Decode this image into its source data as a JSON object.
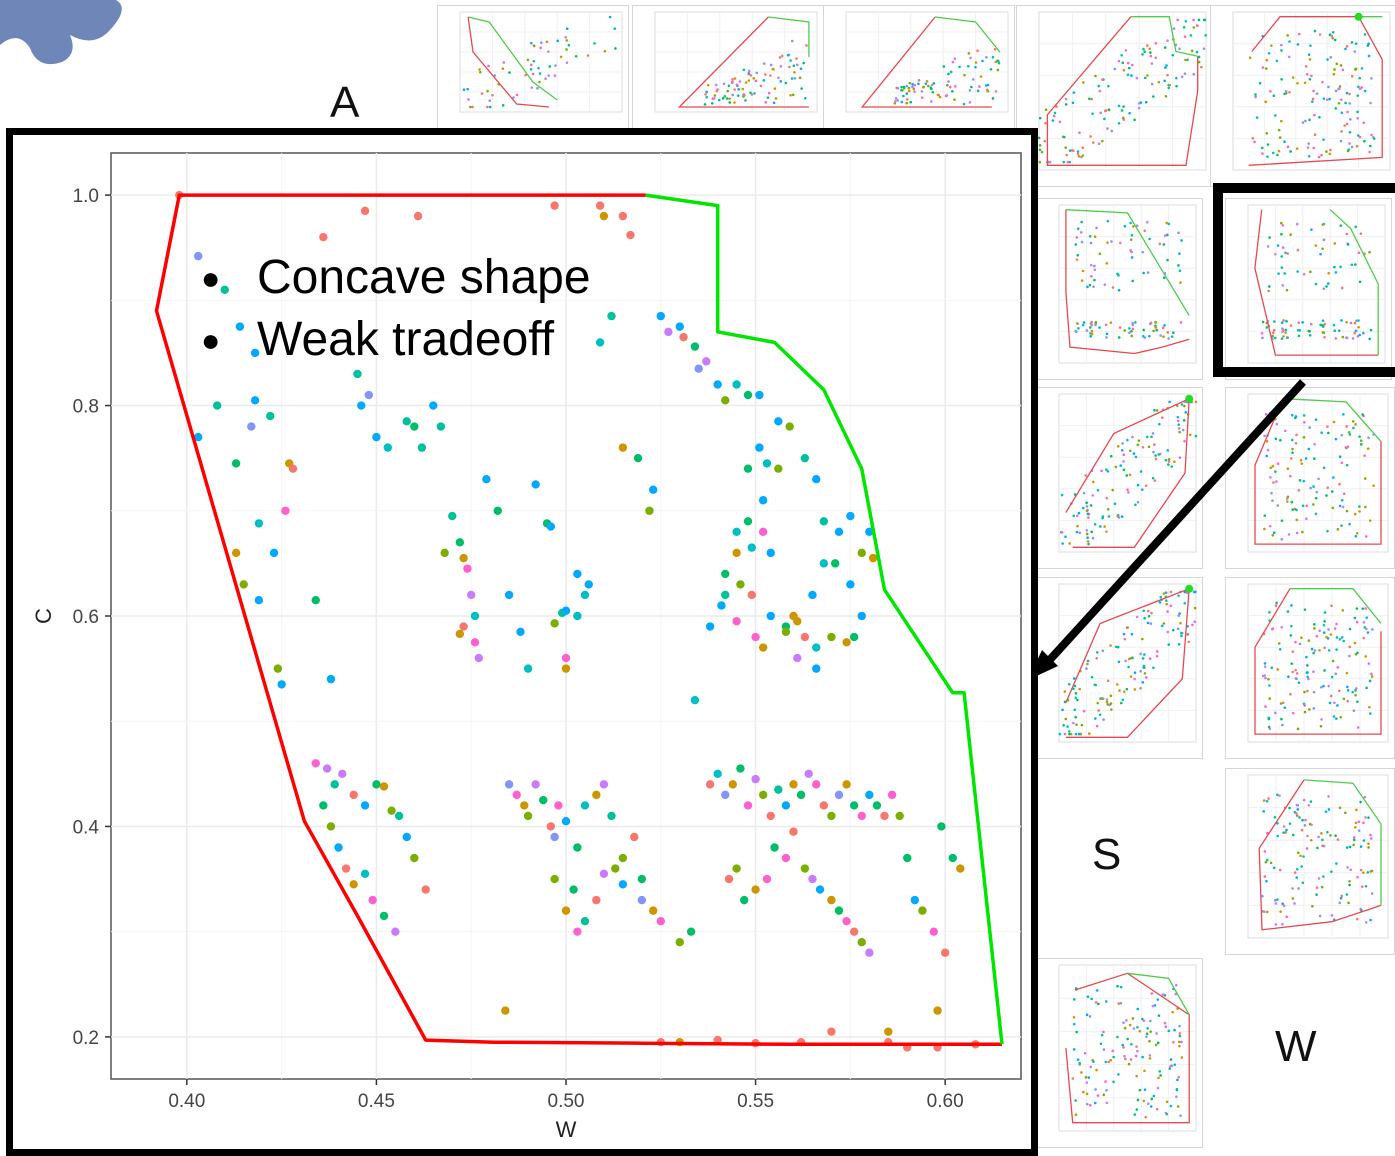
{
  "labels": {
    "panel_a": "A",
    "panel_s": "S",
    "panel_w": "W"
  },
  "annotations": [
    "Concave shape",
    "Weak tradeoff"
  ],
  "colors": {
    "hull_dominated": "#ff0000",
    "hull_pareto": "#00e600",
    "point_palette": [
      "#f8766d",
      "#cd9600",
      "#7cae00",
      "#00be67",
      "#00c19a",
      "#00bfc4",
      "#00a9ff",
      "#8494ff",
      "#c77cff",
      "#ff61cc"
    ],
    "thumb_dominated": "#e8484f",
    "thumb_pareto": "#4ccd4c"
  },
  "chart_data": {
    "type": "scatter",
    "xlabel": "W",
    "ylabel": "C",
    "xlim": [
      0.38,
      0.62
    ],
    "ylim": [
      0.16,
      1.04
    ],
    "xticks": [
      "0.40",
      "0.45",
      "0.50",
      "0.55",
      "0.60"
    ],
    "yticks": [
      "0.2",
      "0.4",
      "0.6",
      "0.8",
      "1.0"
    ],
    "grid": true,
    "hull_dominated": [
      [
        0.521,
        1.0
      ],
      [
        0.398,
        1.0
      ],
      [
        0.392,
        0.89
      ],
      [
        0.431,
        0.405
      ],
      [
        0.445,
        0.315
      ],
      [
        0.463,
        0.197
      ],
      [
        0.481,
        0.195
      ],
      [
        0.52,
        0.194
      ],
      [
        0.56,
        0.193
      ],
      [
        0.615,
        0.193
      ]
    ],
    "hull_pareto": [
      [
        0.521,
        1.0
      ],
      [
        0.54,
        0.99
      ],
      [
        0.54,
        0.87
      ],
      [
        0.555,
        0.86
      ],
      [
        0.568,
        0.815
      ],
      [
        0.578,
        0.74
      ],
      [
        0.584,
        0.625
      ],
      [
        0.602,
        0.527
      ],
      [
        0.605,
        0.527
      ],
      [
        0.615,
        0.193
      ]
    ],
    "points": [
      [
        0.398,
        1.0,
        0
      ],
      [
        0.436,
        0.96,
        0
      ],
      [
        0.447,
        0.985,
        0
      ],
      [
        0.461,
        0.98,
        0
      ],
      [
        0.497,
        0.99,
        0
      ],
      [
        0.509,
        0.99,
        0
      ],
      [
        0.51,
        0.98,
        1
      ],
      [
        0.515,
        0.98,
        0
      ],
      [
        0.517,
        0.962,
        0
      ],
      [
        0.403,
        0.942,
        7
      ],
      [
        0.41,
        0.91,
        4
      ],
      [
        0.418,
        0.85,
        6
      ],
      [
        0.414,
        0.875,
        6
      ],
      [
        0.408,
        0.8,
        4
      ],
      [
        0.403,
        0.77,
        6
      ],
      [
        0.417,
        0.78,
        7
      ],
      [
        0.422,
        0.79,
        4
      ],
      [
        0.418,
        0.805,
        6
      ],
      [
        0.413,
        0.745,
        3
      ],
      [
        0.419,
        0.688,
        5
      ],
      [
        0.423,
        0.66,
        6
      ],
      [
        0.413,
        0.66,
        1
      ],
      [
        0.415,
        0.63,
        2
      ],
      [
        0.419,
        0.615,
        6
      ],
      [
        0.434,
        0.615,
        3
      ],
      [
        0.424,
        0.55,
        2
      ],
      [
        0.425,
        0.535,
        6
      ],
      [
        0.427,
        0.745,
        1
      ],
      [
        0.428,
        0.74,
        0
      ],
      [
        0.426,
        0.7,
        9
      ],
      [
        0.438,
        0.54,
        6
      ],
      [
        0.445,
        0.83,
        4
      ],
      [
        0.446,
        0.8,
        6
      ],
      [
        0.448,
        0.81,
        7
      ],
      [
        0.45,
        0.77,
        6
      ],
      [
        0.453,
        0.76,
        5
      ],
      [
        0.458,
        0.785,
        4
      ],
      [
        0.46,
        0.78,
        3
      ],
      [
        0.462,
        0.76,
        4
      ],
      [
        0.465,
        0.8,
        6
      ],
      [
        0.467,
        0.78,
        4
      ],
      [
        0.468,
        0.66,
        2
      ],
      [
        0.47,
        0.695,
        4
      ],
      [
        0.472,
        0.67,
        3
      ],
      [
        0.473,
        0.655,
        1
      ],
      [
        0.474,
        0.645,
        9
      ],
      [
        0.475,
        0.62,
        8
      ],
      [
        0.476,
        0.6,
        5
      ],
      [
        0.473,
        0.59,
        0
      ],
      [
        0.472,
        0.583,
        1
      ],
      [
        0.476,
        0.575,
        9
      ],
      [
        0.477,
        0.56,
        8
      ],
      [
        0.479,
        0.73,
        6
      ],
      [
        0.482,
        0.7,
        3
      ],
      [
        0.485,
        0.62,
        6
      ],
      [
        0.488,
        0.585,
        6
      ],
      [
        0.49,
        0.55,
        5
      ],
      [
        0.492,
        0.725,
        6
      ],
      [
        0.495,
        0.688,
        3
      ],
      [
        0.496,
        0.685,
        6
      ],
      [
        0.5,
        0.55,
        1
      ],
      [
        0.5,
        0.56,
        9
      ],
      [
        0.503,
        0.6,
        5
      ],
      [
        0.497,
        0.593,
        2
      ],
      [
        0.499,
        0.603,
        4
      ],
      [
        0.5,
        0.605,
        6
      ],
      [
        0.505,
        0.62,
        5
      ],
      [
        0.503,
        0.64,
        6
      ],
      [
        0.506,
        0.63,
        6
      ],
      [
        0.509,
        0.86,
        5
      ],
      [
        0.512,
        0.885,
        4
      ],
      [
        0.515,
        0.76,
        1
      ],
      [
        0.519,
        0.75,
        3
      ],
      [
        0.522,
        0.7,
        2
      ],
      [
        0.523,
        0.72,
        6
      ],
      [
        0.525,
        0.885,
        6
      ],
      [
        0.527,
        0.87,
        8
      ],
      [
        0.53,
        0.875,
        6
      ],
      [
        0.531,
        0.865,
        0
      ],
      [
        0.534,
        0.856,
        3
      ],
      [
        0.535,
        0.835,
        7
      ],
      [
        0.537,
        0.842,
        8
      ],
      [
        0.54,
        0.82,
        6
      ],
      [
        0.542,
        0.805,
        2
      ],
      [
        0.545,
        0.82,
        5
      ],
      [
        0.548,
        0.81,
        3
      ],
      [
        0.551,
        0.81,
        6
      ],
      [
        0.556,
        0.785,
        6
      ],
      [
        0.559,
        0.78,
        2
      ],
      [
        0.563,
        0.75,
        4
      ],
      [
        0.566,
        0.73,
        6
      ],
      [
        0.568,
        0.69,
        4
      ],
      [
        0.571,
        0.65,
        3
      ],
      [
        0.575,
        0.63,
        6
      ],
      [
        0.578,
        0.6,
        6
      ],
      [
        0.548,
        0.74,
        3
      ],
      [
        0.551,
        0.76,
        6
      ],
      [
        0.553,
        0.745,
        5
      ],
      [
        0.556,
        0.74,
        2
      ],
      [
        0.552,
        0.71,
        6
      ],
      [
        0.548,
        0.69,
        3
      ],
      [
        0.545,
        0.68,
        5
      ],
      [
        0.552,
        0.68,
        9
      ],
      [
        0.545,
        0.66,
        1
      ],
      [
        0.549,
        0.665,
        5
      ],
      [
        0.554,
        0.66,
        6
      ],
      [
        0.542,
        0.64,
        3
      ],
      [
        0.546,
        0.63,
        2
      ],
      [
        0.549,
        0.62,
        0
      ],
      [
        0.554,
        0.6,
        6
      ],
      [
        0.558,
        0.59,
        3
      ],
      [
        0.561,
        0.595,
        1
      ],
      [
        0.563,
        0.58,
        0
      ],
      [
        0.566,
        0.57,
        5
      ],
      [
        0.561,
        0.56,
        8
      ],
      [
        0.566,
        0.55,
        6
      ],
      [
        0.574,
        0.575,
        1
      ],
      [
        0.57,
        0.58,
        2
      ],
      [
        0.576,
        0.58,
        3
      ],
      [
        0.534,
        0.52,
        5
      ],
      [
        0.538,
        0.59,
        6
      ],
      [
        0.541,
        0.61,
        6
      ],
      [
        0.542,
        0.62,
        4
      ],
      [
        0.545,
        0.595,
        9
      ],
      [
        0.55,
        0.58,
        9
      ],
      [
        0.552,
        0.57,
        1
      ],
      [
        0.558,
        0.585,
        2
      ],
      [
        0.56,
        0.6,
        1
      ],
      [
        0.565,
        0.62,
        6
      ],
      [
        0.568,
        0.65,
        5
      ],
      [
        0.572,
        0.68,
        6
      ],
      [
        0.575,
        0.695,
        6
      ],
      [
        0.578,
        0.66,
        2
      ],
      [
        0.58,
        0.68,
        6
      ],
      [
        0.581,
        0.655,
        1
      ],
      [
        0.434,
        0.46,
        9
      ],
      [
        0.437,
        0.455,
        8
      ],
      [
        0.439,
        0.44,
        4
      ],
      [
        0.441,
        0.45,
        8
      ],
      [
        0.444,
        0.43,
        0
      ],
      [
        0.447,
        0.42,
        6
      ],
      [
        0.45,
        0.44,
        3
      ],
      [
        0.452,
        0.438,
        1
      ],
      [
        0.454,
        0.415,
        2
      ],
      [
        0.436,
        0.42,
        3
      ],
      [
        0.438,
        0.4,
        2
      ],
      [
        0.44,
        0.38,
        6
      ],
      [
        0.442,
        0.36,
        0
      ],
      [
        0.444,
        0.345,
        1
      ],
      [
        0.447,
        0.355,
        5
      ],
      [
        0.449,
        0.33,
        9
      ],
      [
        0.452,
        0.315,
        3
      ],
      [
        0.455,
        0.3,
        8
      ],
      [
        0.46,
        0.37,
        2
      ],
      [
        0.463,
        0.34,
        0
      ],
      [
        0.458,
        0.39,
        6
      ],
      [
        0.456,
        0.41,
        4
      ],
      [
        0.485,
        0.44,
        7
      ],
      [
        0.487,
        0.43,
        9
      ],
      [
        0.489,
        0.42,
        1
      ],
      [
        0.49,
        0.41,
        2
      ],
      [
        0.492,
        0.44,
        8
      ],
      [
        0.494,
        0.425,
        3
      ],
      [
        0.496,
        0.4,
        0
      ],
      [
        0.497,
        0.39,
        7
      ],
      [
        0.498,
        0.42,
        9
      ],
      [
        0.5,
        0.405,
        6
      ],
      [
        0.503,
        0.38,
        3
      ],
      [
        0.505,
        0.42,
        5
      ],
      [
        0.508,
        0.43,
        1
      ],
      [
        0.51,
        0.44,
        8
      ],
      [
        0.512,
        0.41,
        4
      ],
      [
        0.515,
        0.37,
        2
      ],
      [
        0.518,
        0.39,
        0
      ],
      [
        0.52,
        0.35,
        3
      ],
      [
        0.497,
        0.35,
        2
      ],
      [
        0.5,
        0.32,
        1
      ],
      [
        0.502,
        0.34,
        3
      ],
      [
        0.503,
        0.3,
        9
      ],
      [
        0.505,
        0.31,
        4
      ],
      [
        0.508,
        0.33,
        0
      ],
      [
        0.51,
        0.355,
        8
      ],
      [
        0.513,
        0.36,
        2
      ],
      [
        0.515,
        0.345,
        6
      ],
      [
        0.52,
        0.33,
        7
      ],
      [
        0.523,
        0.32,
        1
      ],
      [
        0.525,
        0.31,
        9
      ],
      [
        0.53,
        0.29,
        2
      ],
      [
        0.533,
        0.3,
        3
      ],
      [
        0.538,
        0.44,
        0
      ],
      [
        0.54,
        0.45,
        5
      ],
      [
        0.542,
        0.43,
        7
      ],
      [
        0.544,
        0.44,
        1
      ],
      [
        0.546,
        0.455,
        3
      ],
      [
        0.548,
        0.42,
        9
      ],
      [
        0.55,
        0.445,
        8
      ],
      [
        0.552,
        0.43,
        2
      ],
      [
        0.554,
        0.41,
        0
      ],
      [
        0.556,
        0.435,
        4
      ],
      [
        0.558,
        0.42,
        6
      ],
      [
        0.56,
        0.44,
        1
      ],
      [
        0.562,
        0.43,
        3
      ],
      [
        0.564,
        0.45,
        8
      ],
      [
        0.566,
        0.44,
        9
      ],
      [
        0.568,
        0.42,
        0
      ],
      [
        0.57,
        0.41,
        2
      ],
      [
        0.572,
        0.43,
        7
      ],
      [
        0.574,
        0.44,
        1
      ],
      [
        0.576,
        0.42,
        3
      ],
      [
        0.578,
        0.41,
        9
      ],
      [
        0.58,
        0.43,
        6
      ],
      [
        0.582,
        0.42,
        3
      ],
      [
        0.584,
        0.41,
        0
      ],
      [
        0.586,
        0.43,
        9
      ],
      [
        0.588,
        0.41,
        2
      ],
      [
        0.59,
        0.37,
        3
      ],
      [
        0.555,
        0.38,
        3
      ],
      [
        0.558,
        0.37,
        9
      ],
      [
        0.56,
        0.395,
        0
      ],
      [
        0.563,
        0.36,
        2
      ],
      [
        0.565,
        0.35,
        8
      ],
      [
        0.567,
        0.34,
        6
      ],
      [
        0.57,
        0.33,
        1
      ],
      [
        0.572,
        0.32,
        3
      ],
      [
        0.574,
        0.31,
        9
      ],
      [
        0.576,
        0.3,
        0
      ],
      [
        0.578,
        0.29,
        2
      ],
      [
        0.58,
        0.28,
        8
      ],
      [
        0.547,
        0.33,
        3
      ],
      [
        0.55,
        0.34,
        1
      ],
      [
        0.553,
        0.35,
        9
      ],
      [
        0.545,
        0.36,
        2
      ],
      [
        0.543,
        0.35,
        0
      ],
      [
        0.594,
        0.32,
        2
      ],
      [
        0.597,
        0.3,
        9
      ],
      [
        0.6,
        0.28,
        0
      ],
      [
        0.602,
        0.37,
        3
      ],
      [
        0.604,
        0.36,
        1
      ],
      [
        0.599,
        0.4,
        3
      ],
      [
        0.592,
        0.33,
        6
      ],
      [
        0.484,
        0.225,
        1
      ],
      [
        0.525,
        0.195,
        0
      ],
      [
        0.54,
        0.197,
        0
      ],
      [
        0.57,
        0.205,
        0
      ],
      [
        0.585,
        0.205,
        1
      ],
      [
        0.59,
        0.19,
        0
      ],
      [
        0.598,
        0.225,
        1
      ],
      [
        0.608,
        0.193,
        0
      ],
      [
        0.598,
        0.19,
        0
      ],
      [
        0.585,
        0.195,
        0
      ],
      [
        0.562,
        0.195,
        0
      ],
      [
        0.53,
        0.195,
        1
      ],
      [
        0.55,
        0.194,
        0
      ]
    ]
  }
}
